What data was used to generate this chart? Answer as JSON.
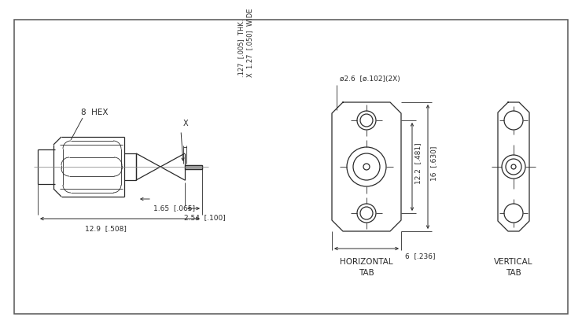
{
  "bg_color": "#ffffff",
  "line_color": "#2a2a2a",
  "dim_color": "#2a2a2a",
  "annotations": {
    "hex_label": "8  HEX",
    "dim1": "12.9  [.508]",
    "dim2": "2.54  [.100]",
    "dim3": "1.65  [.065]",
    "thk": ".127  [.005]  THK.",
    "wide": "X  1.27  [.050]  WIDE",
    "x_label": "X",
    "hole_label": "ø2.6  [ø.102](2X)",
    "dim_h1": "12.2  [.481]",
    "dim_h2": "16  [.630]",
    "dim_w": "6  [.236]",
    "horiz_tab": "HORIZONTAL\nTAB",
    "vert_tab": "VERTICAL\nTAB"
  }
}
